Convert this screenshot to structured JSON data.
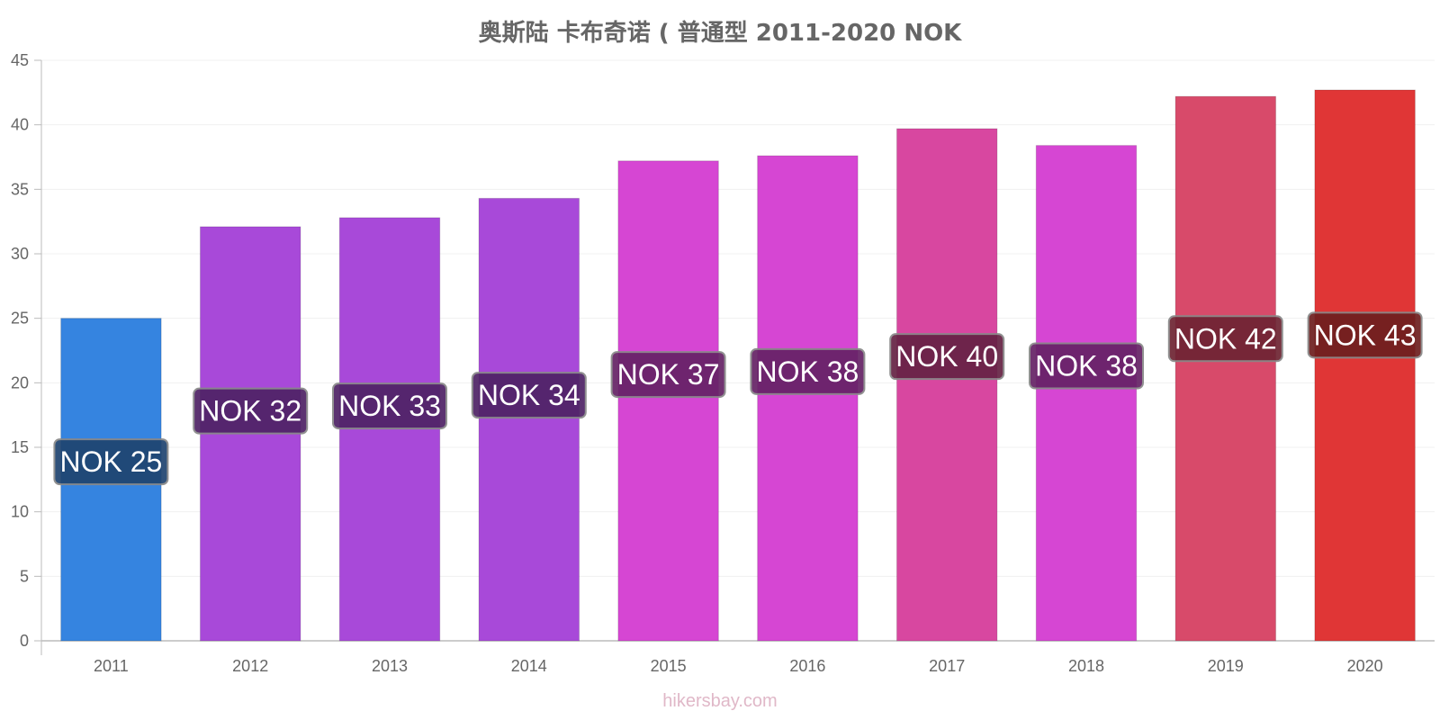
{
  "chart_data": {
    "type": "bar",
    "title": "奥斯陆 卡布奇诺 ( 普通型 2011-2020 NOK",
    "categories": [
      "2011",
      "2012",
      "2013",
      "2014",
      "2015",
      "2016",
      "2017",
      "2018",
      "2019",
      "2020"
    ],
    "values": [
      25.0,
      32.1,
      32.8,
      34.3,
      37.2,
      37.6,
      39.7,
      38.4,
      42.2,
      42.7
    ],
    "data_labels": [
      "NOK 25",
      "NOK 32",
      "NOK 33",
      "NOK 34",
      "NOK 37",
      "NOK 38",
      "NOK 40",
      "NOK 38",
      "NOK 42",
      "NOK 43"
    ],
    "colors": [
      "#3584e0",
      "#a849d9",
      "#a849d9",
      "#a849d9",
      "#d646d3",
      "#d646d3",
      "#d847a0",
      "#d646d3",
      "#d84a6a",
      "#e03636"
    ],
    "label_box_colors": [
      "#1f4470",
      "#4f2266",
      "#4f2266",
      "#4f2266",
      "#662266",
      "#662266",
      "#662244",
      "#662266",
      "#6e2433",
      "#6e1f1f"
    ],
    "ylim": [
      0,
      45
    ],
    "yticks": [
      0,
      5,
      10,
      15,
      20,
      25,
      30,
      35,
      40,
      45
    ],
    "grid": true,
    "legend": "none"
  },
  "footer": "hikersbay.com"
}
